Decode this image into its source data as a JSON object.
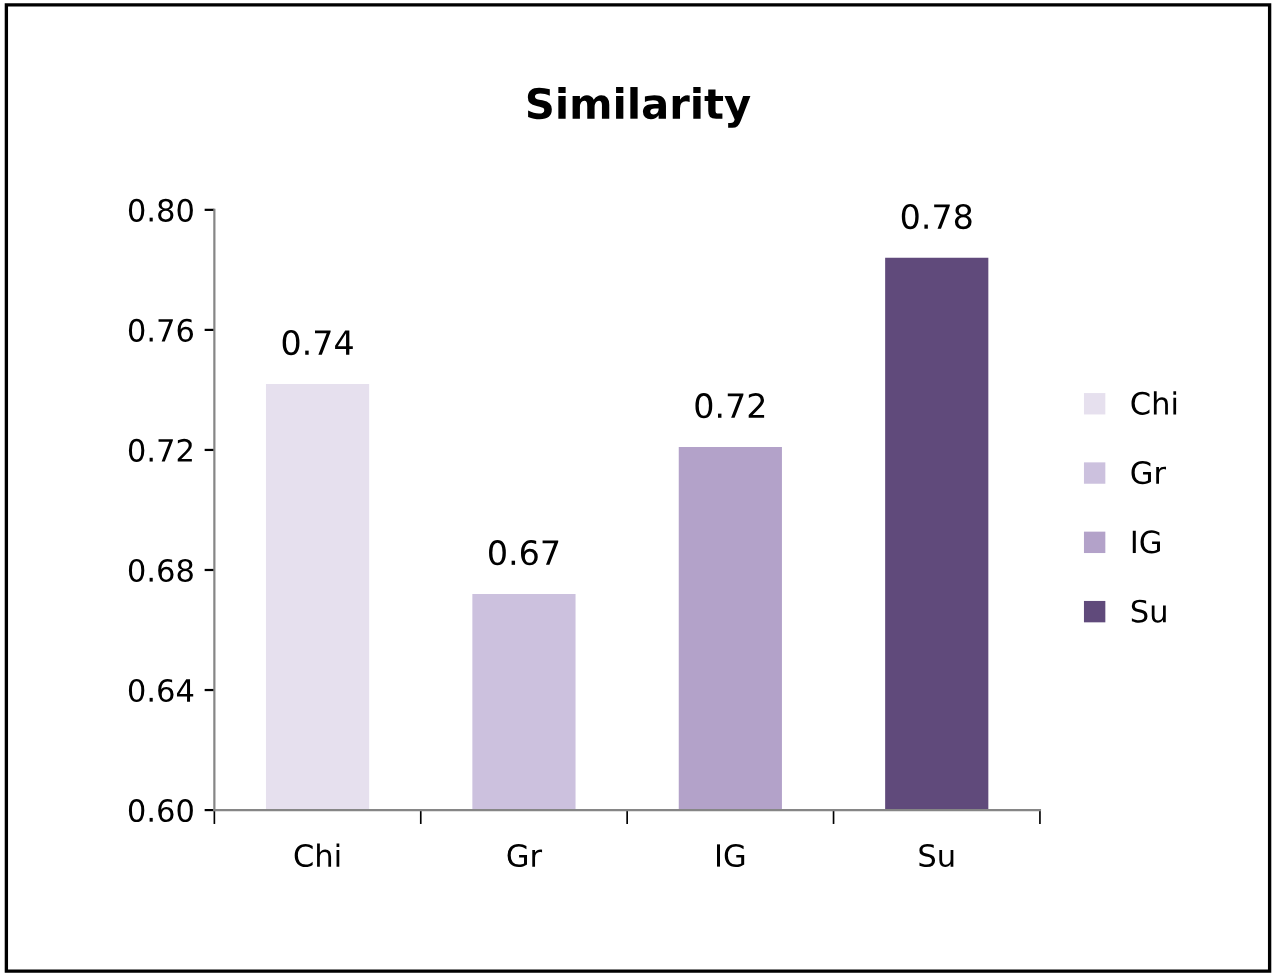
{
  "chart_data": {
    "type": "bar",
    "title": "Similarity",
    "categories": [
      "Chi",
      "Gr",
      "IG",
      "Su"
    ],
    "series": [
      {
        "name": "Chi",
        "color": "#e6e0ee",
        "values": [
          0.742,
          null,
          null,
          null
        ],
        "value_labels": [
          "0.74",
          null,
          null,
          null
        ]
      },
      {
        "name": "Gr",
        "color": "#ccc1de",
        "values": [
          null,
          0.672,
          null,
          null
        ],
        "value_labels": [
          null,
          "0.67",
          null,
          null
        ]
      },
      {
        "name": "IG",
        "color": "#b3a2c9",
        "values": [
          null,
          null,
          0.721,
          null
        ],
        "value_labels": [
          null,
          null,
          "0.72",
          null
        ]
      },
      {
        "name": "Su",
        "color": "#604a7b",
        "values": [
          null,
          null,
          null,
          0.784
        ],
        "value_labels": [
          null,
          null,
          null,
          "0.78"
        ]
      }
    ],
    "ylim": [
      0.6,
      0.8
    ],
    "yticks": [
      {
        "value": 0.6,
        "label": "0.60"
      },
      {
        "value": 0.64,
        "label": "0.64"
      },
      {
        "value": 0.68,
        "label": "0.68"
      },
      {
        "value": 0.72,
        "label": "0.72"
      },
      {
        "value": 0.76,
        "label": "0.76"
      },
      {
        "value": 0.8,
        "label": "0.80"
      }
    ],
    "legend": "right"
  }
}
